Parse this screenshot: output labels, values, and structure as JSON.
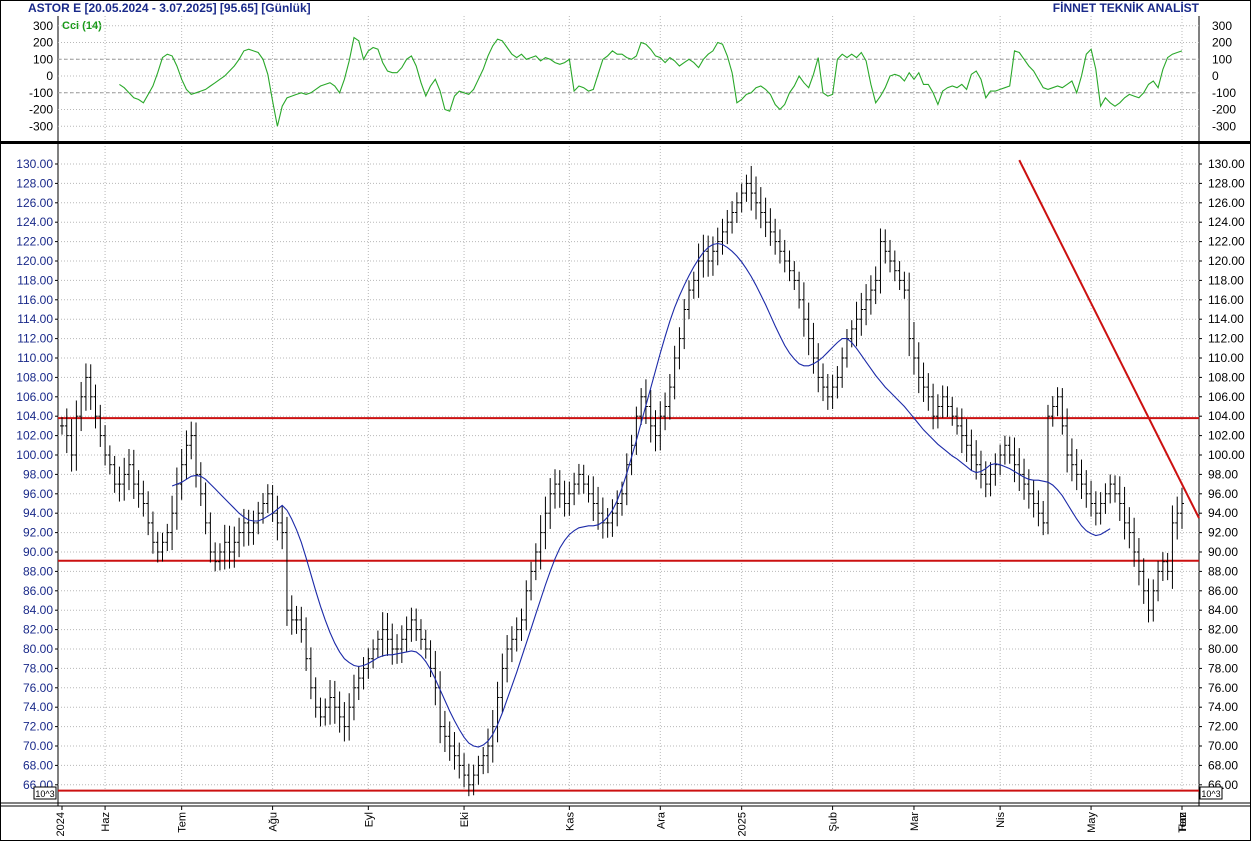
{
  "header": {
    "symbol": "ASTOR E",
    "date_range": "[20.05.2024 - 3.07.2025]",
    "last_price": "[95.65]",
    "period": "[Günlük]",
    "provider": "FİNNET TEKNİK ANALİST"
  },
  "colors": {
    "price_bars": "#000000",
    "moving_average": "#1c2aa8",
    "cci_line": "#2aa82a",
    "support_resistance": "#cc1111",
    "trendline": "#cc1111",
    "grid": "#b8b8b8",
    "axis_text_left": "#1a2a8a"
  },
  "chart_data": [
    {
      "type": "line",
      "name": "cci",
      "label": "Cci (14)",
      "ylim": [
        -350,
        300
      ],
      "yticks": [
        300,
        200,
        100,
        0,
        -100,
        -200,
        -300
      ],
      "ytick_labels": [
        "300",
        "200",
        "100",
        "0",
        "-100",
        "-200",
        "-300"
      ],
      "reference_lines": [
        100,
        -100
      ],
      "series": [
        {
          "values": [
            -50,
            -70,
            -100,
            -130,
            -140,
            -160,
            -110,
            -60,
            20,
            110,
            130,
            120,
            60,
            -20,
            -80,
            -110,
            -100,
            -90,
            -80,
            -60,
            -40,
            -20,
            0,
            30,
            60,
            100,
            150,
            160,
            150,
            140,
            100,
            10,
            -150,
            -300,
            -180,
            -130,
            -120,
            -110,
            -100,
            -110,
            -100,
            -80,
            -60,
            -50,
            -40,
            -60,
            -100,
            -20,
            90,
            230,
            210,
            100,
            150,
            170,
            160,
            80,
            30,
            20,
            20,
            50,
            100,
            120,
            60,
            -40,
            -120,
            -60,
            -20,
            -90,
            -200,
            -210,
            -120,
            -90,
            -100,
            -110,
            -80,
            -20,
            40,
            120,
            180,
            220,
            210,
            170,
            130,
            110,
            130,
            100,
            110,
            120,
            90,
            110,
            100,
            80,
            70,
            80,
            100,
            -90,
            -60,
            -70,
            -90,
            -80,
            10,
            100,
            120,
            150,
            130,
            130,
            110,
            100,
            120,
            200,
            190,
            160,
            120,
            110,
            80,
            110,
            90,
            60,
            80,
            100,
            80,
            50,
            100,
            130,
            150,
            200,
            190,
            120,
            20,
            -160,
            -140,
            -110,
            -100,
            -70,
            -60,
            -80,
            -110,
            -170,
            -200,
            -170,
            -100,
            -60,
            0,
            -40,
            -70,
            10,
            110,
            -100,
            -120,
            -110,
            100,
            130,
            110,
            130,
            110,
            140,
            90,
            -50,
            -160,
            -120,
            -70,
            0,
            10,
            0,
            -30,
            20,
            -20,
            20,
            -50,
            -50,
            -100,
            -170,
            -90,
            -70,
            -60,
            -70,
            -50,
            -80,
            10,
            30,
            -20,
            -130,
            -90,
            -90,
            -80,
            -70,
            -60,
            150,
            140,
            100,
            60,
            30,
            -20,
            -70,
            -80,
            -70,
            -60,
            -70,
            -50,
            -30,
            -100,
            0,
            130,
            160,
            40,
            -180,
            -130,
            -160,
            -180,
            -160,
            -130,
            -110,
            -120,
            -130,
            -100,
            -50,
            -30,
            -70,
            40,
            110,
            130,
            140,
            150
          ]
        }
      ]
    },
    {
      "type": "bar",
      "name": "price",
      "ylim": [
        65,
        131.5
      ],
      "yticks": [
        66,
        68,
        70,
        72,
        74,
        76,
        78,
        80,
        82,
        84,
        86,
        88,
        90,
        92,
        94,
        96,
        98,
        100,
        102,
        104,
        106,
        108,
        110,
        112,
        114,
        116,
        118,
        120,
        122,
        124,
        126,
        128,
        130
      ],
      "ytick_labels": [
        "66.00",
        "68.00",
        "70.00",
        "72.00",
        "74.00",
        "76.00",
        "78.00",
        "80.00",
        "82.00",
        "84.00",
        "86.00",
        "88.00",
        "90.00",
        "92.00",
        "94.00",
        "96.00",
        "98.00",
        "100.00",
        "102.00",
        "104.00",
        "106.00",
        "108.00",
        "110.00",
        "112.00",
        "114.00",
        "116.00",
        "118.00",
        "120.00",
        "122.00",
        "124.00",
        "126.00",
        "128.00",
        "130.00"
      ],
      "x_labels": [
        "2024",
        "Haz",
        "Tem",
        "Ağu",
        "Eyl",
        "Eki",
        "Kas",
        "Ara",
        "2025",
        "Şub",
        "Mar",
        "Nis",
        "May",
        "Haz",
        "Tem"
      ],
      "volume_scale_label": "10^3",
      "horizontal_lines": [
        103.8,
        89.1,
        65.4
      ],
      "trendline": {
        "from": [
          200,
          130.4
        ],
        "to": [
          284,
          93.5
        ]
      },
      "closes": [
        103,
        102,
        100,
        104,
        106,
        108,
        106,
        104,
        102,
        100,
        99,
        97,
        97,
        98,
        99,
        97,
        96,
        95,
        93,
        91,
        90,
        91,
        92,
        94,
        97,
        99,
        101,
        102,
        98,
        96,
        93,
        90,
        89,
        90,
        91,
        90,
        91,
        92,
        93,
        92,
        93,
        94,
        95,
        96,
        94,
        93,
        92,
        84,
        83,
        83,
        82,
        79,
        76,
        74,
        73,
        74,
        75,
        74,
        73,
        72,
        74,
        76,
        77,
        78,
        79,
        80,
        81,
        82,
        81,
        80,
        80,
        81,
        82,
        83,
        82,
        81,
        80,
        78,
        76,
        72,
        71,
        70,
        69,
        68,
        67,
        66,
        67,
        68,
        69,
        70,
        72,
        75,
        78,
        80,
        81,
        82,
        83,
        86,
        88,
        90,
        92,
        94,
        96,
        97,
        96,
        95,
        96,
        97,
        98,
        97,
        96,
        95,
        94,
        93,
        93,
        94,
        95,
        96,
        99,
        101,
        104,
        106,
        105,
        103,
        102,
        104,
        105,
        107,
        110,
        112,
        115,
        117,
        118,
        120,
        121,
        120,
        121,
        122,
        123,
        124,
        125,
        126,
        127,
        128,
        127,
        126,
        125,
        124,
        123,
        122,
        121,
        120,
        119,
        118,
        116,
        114,
        112,
        110,
        108,
        107,
        106,
        107,
        108,
        110,
        112,
        113,
        114,
        115,
        116,
        117,
        118,
        122,
        121,
        120,
        119,
        118,
        117,
        112,
        110,
        108,
        107,
        106,
        104,
        105,
        106,
        105,
        104,
        103,
        102,
        101,
        100,
        99,
        98,
        97,
        98,
        99,
        100,
        101,
        100,
        99,
        98,
        97,
        96,
        95,
        94,
        93,
        104,
        105,
        106,
        103,
        100,
        99,
        98,
        97,
        96,
        95,
        94,
        95,
        96,
        97,
        96,
        95,
        93,
        92,
        90,
        88,
        86,
        84,
        86,
        88,
        89,
        88,
        93,
        94,
        95
      ],
      "moving_average": [
        null,
        null,
        null,
        null,
        null,
        null,
        null,
        null,
        null,
        null,
        null,
        null,
        null,
        null,
        null,
        null,
        null,
        null,
        null,
        null,
        null,
        null,
        null,
        96.8,
        97.0,
        97.2,
        97.5,
        97.8,
        97.9,
        97.8,
        97.5,
        97.0,
        96.5,
        96.0,
        95.5,
        95.0,
        94.5,
        94.0,
        93.6,
        93.3,
        93.2,
        93.2,
        93.4,
        93.7,
        94.0,
        94.4,
        94.8,
        94.3,
        93.4,
        92.3,
        91.0,
        89.4,
        87.7,
        86.0,
        84.4,
        83.0,
        81.7,
        80.6,
        79.7,
        79.0,
        78.6,
        78.3,
        78.2,
        78.3,
        78.5,
        78.8,
        79.1,
        79.3,
        79.4,
        79.4,
        79.5,
        79.6,
        79.7,
        79.8,
        79.7,
        79.3,
        78.7,
        77.9,
        76.9,
        75.8,
        74.7,
        73.6,
        72.6,
        71.7,
        70.9,
        70.3,
        70.0,
        69.9,
        70.1,
        70.5,
        71.2,
        72.2,
        73.4,
        74.8,
        76.2,
        77.6,
        79.1,
        80.6,
        82.1,
        83.6,
        85.1,
        86.6,
        88.0,
        89.3,
        90.4,
        91.2,
        91.8,
        92.2,
        92.5,
        92.6,
        92.7,
        92.7,
        92.8,
        93.1,
        93.6,
        94.3,
        95.3,
        96.6,
        98.1,
        99.8,
        101.5,
        103.3,
        105.1,
        106.9,
        108.7,
        110.5,
        112.2,
        113.8,
        115.2,
        116.4,
        117.5,
        118.5,
        119.4,
        120.2,
        120.9,
        121.4,
        121.7,
        121.8,
        121.7,
        121.4,
        121.0,
        120.5,
        119.9,
        119.2,
        118.4,
        117.5,
        116.5,
        115.5,
        114.4,
        113.3,
        112.3,
        111.3,
        110.5,
        109.9,
        109.4,
        109.2,
        109.2,
        109.4,
        109.7,
        110.1,
        110.6,
        111.1,
        111.6,
        112.0,
        112.0,
        111.6,
        111.0,
        110.3,
        109.6,
        108.9,
        108.2,
        107.6,
        107.0,
        106.5,
        106.0,
        105.5,
        105.0,
        104.4,
        103.8,
        103.2,
        102.6,
        102.1,
        101.6,
        101.1,
        100.7,
        100.3,
        99.9,
        99.6,
        99.2,
        98.8,
        98.4,
        98.2,
        98.3,
        98.6,
        99.0,
        99.1,
        99.0,
        98.8,
        98.6,
        98.3,
        98.0,
        97.7,
        97.5,
        97.4,
        97.4,
        97.3,
        97.2,
        96.9,
        96.4,
        95.8,
        95.0,
        94.2,
        93.4,
        92.7,
        92.2,
        91.9,
        91.7,
        91.8,
        92.1,
        92.4
      ]
    }
  ]
}
